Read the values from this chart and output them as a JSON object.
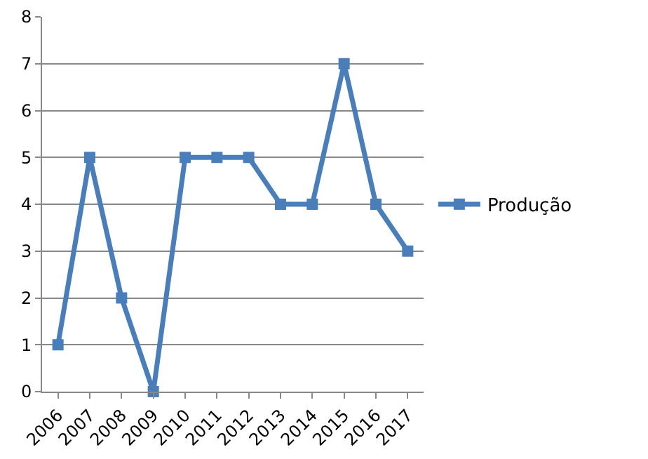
{
  "chart_data": {
    "type": "line",
    "categories": [
      "2006",
      "2007",
      "2008",
      "2009",
      "2010",
      "2011",
      "2012",
      "2013",
      "2014",
      "2015",
      "2016",
      "2017"
    ],
    "series": [
      {
        "name": "Produção",
        "color": "#4a7ebb",
        "values": [
          1,
          5,
          2,
          0,
          5,
          5,
          5,
          4,
          4,
          7,
          4,
          3
        ]
      }
    ],
    "ylim": [
      0,
      8
    ],
    "yticks": [
      0,
      1,
      2,
      3,
      4,
      5,
      6,
      7,
      8
    ],
    "grid": "y",
    "legend": "right",
    "marker": "square",
    "line_style": "solid"
  }
}
